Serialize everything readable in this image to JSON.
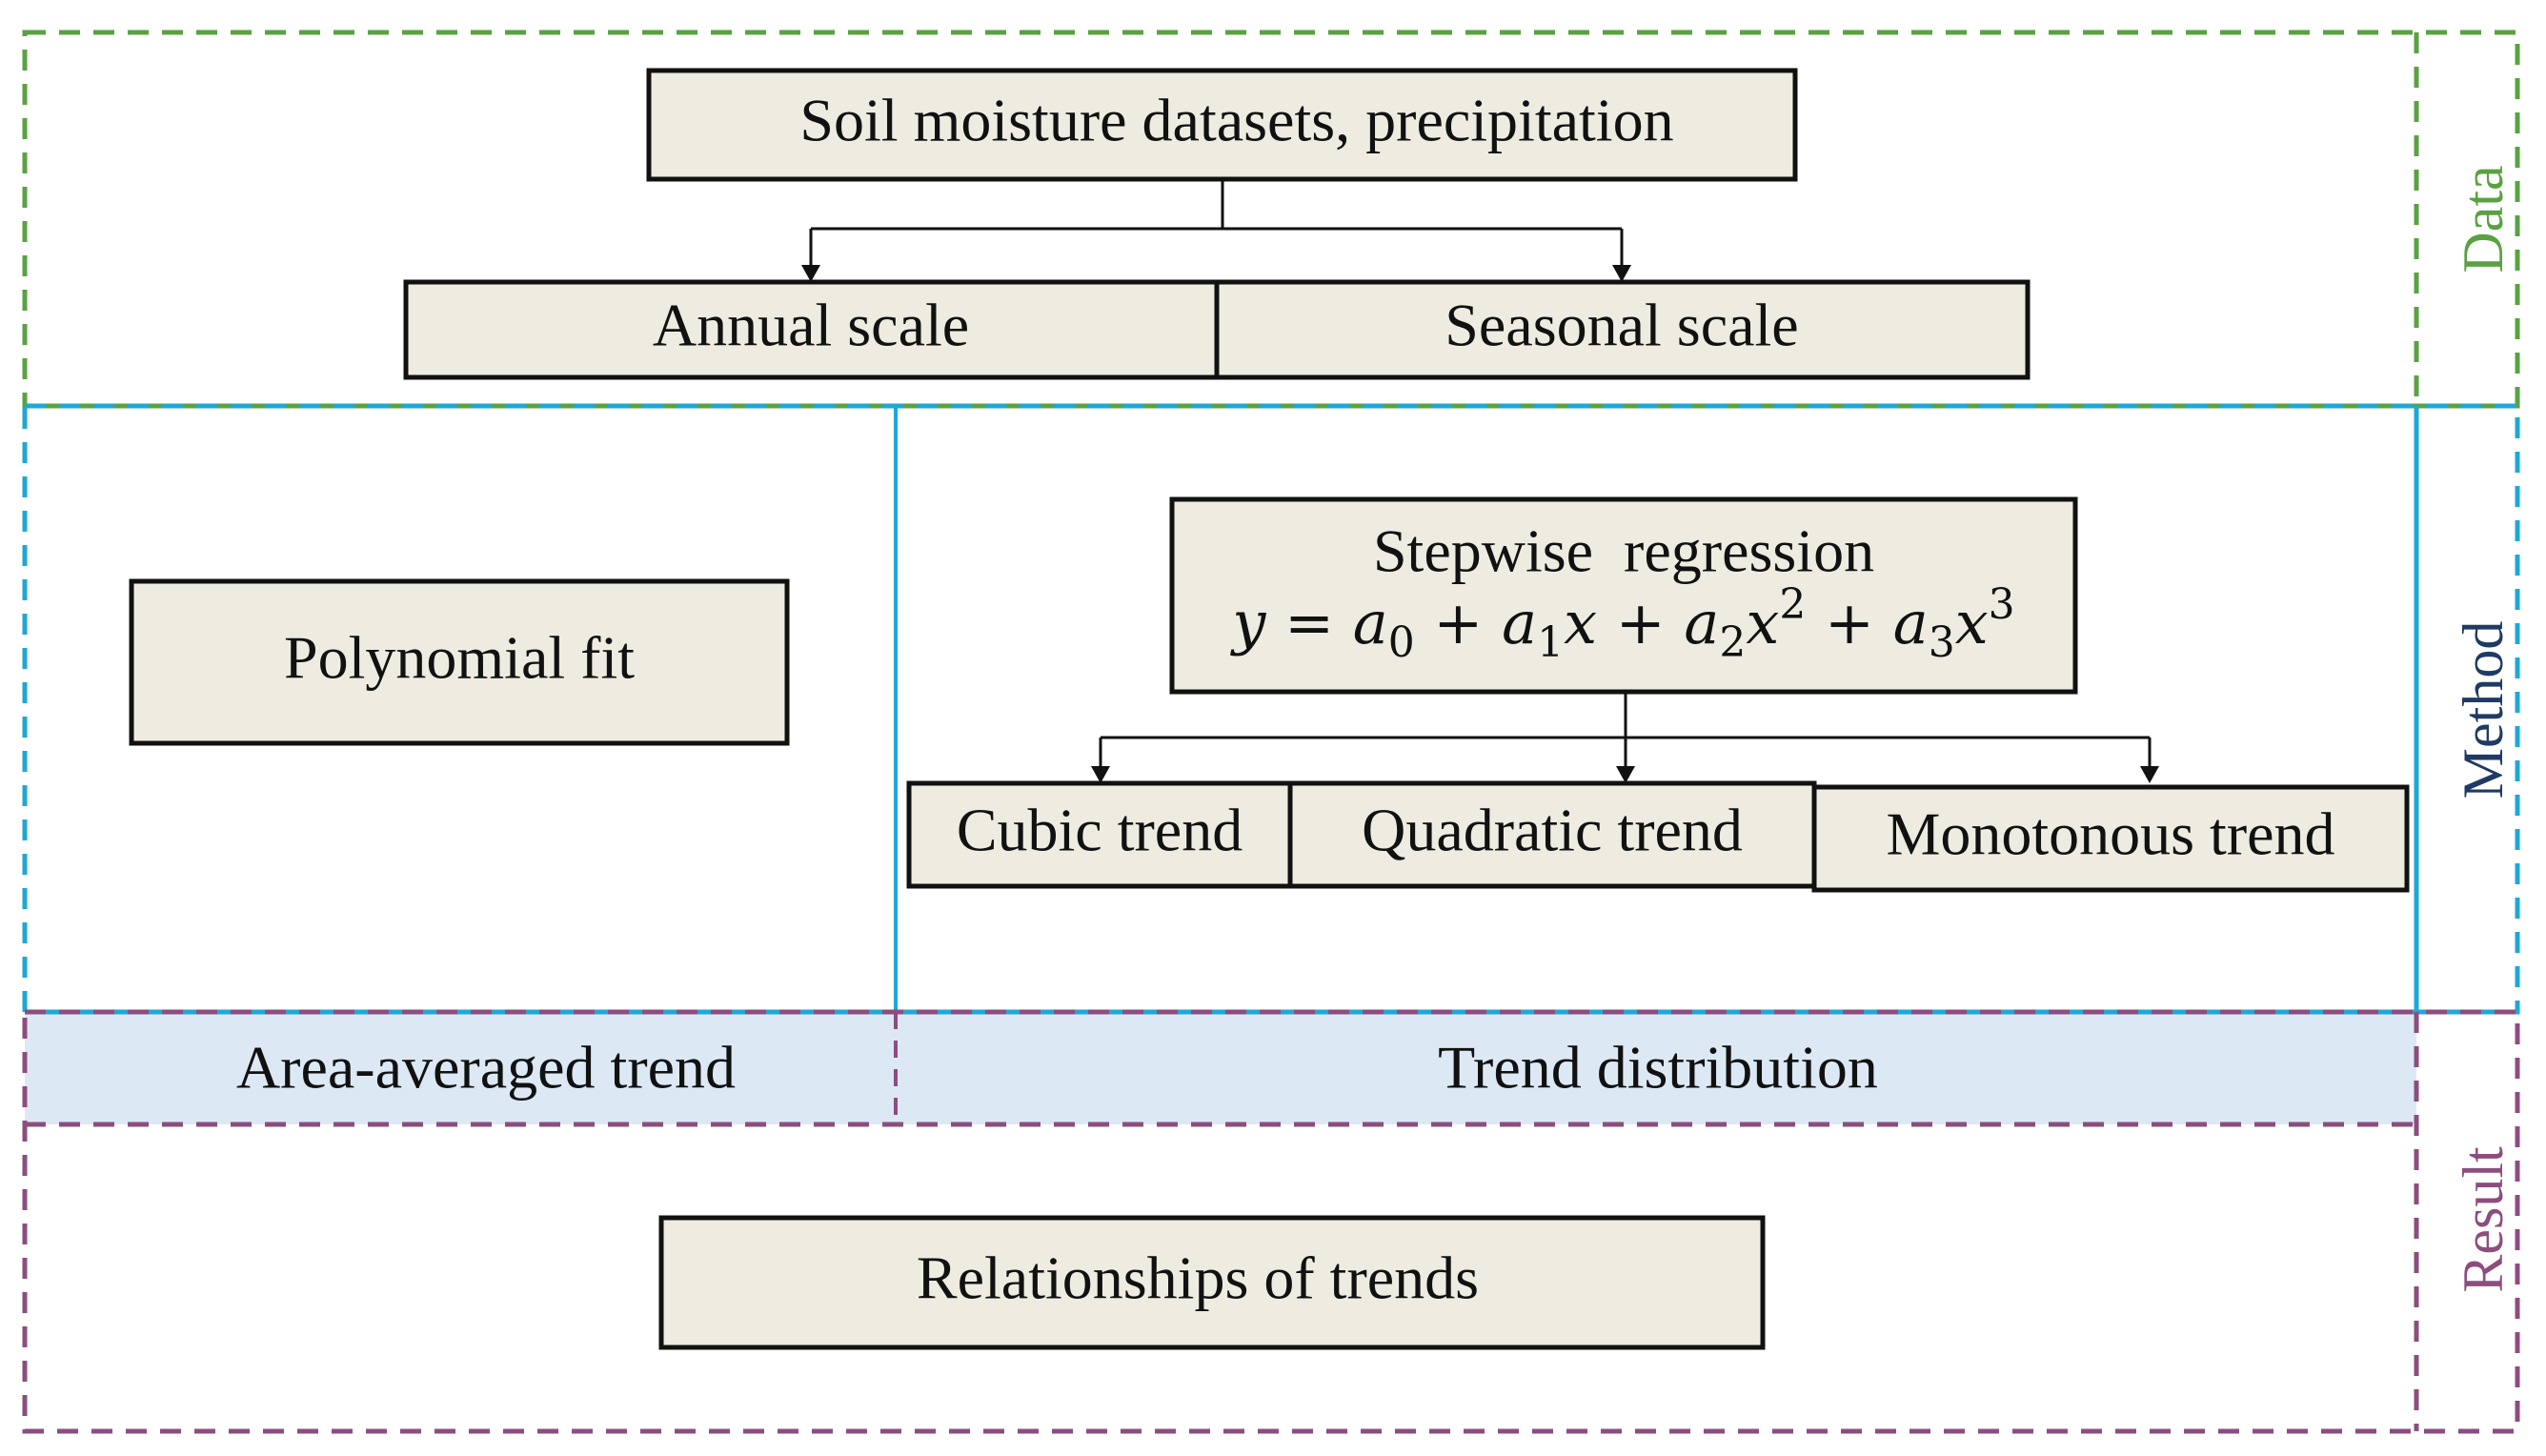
{
  "sections": {
    "data": {
      "label": "Data",
      "color": "#5aa142"
    },
    "method": {
      "label": "Method",
      "color": "#1ea8d6",
      "label_color": "#1f3b63"
    },
    "result": {
      "label": "Result",
      "color": "#8c4d7f"
    }
  },
  "boxes": {
    "source": "Soil moisture datasets, precipitation",
    "annual": "Annual scale",
    "seasonal": "Seasonal scale",
    "polynomial": "Polynomial fit",
    "stepwise_title": "Stepwise  regression",
    "stepwise_formula": "y = a0 + a1x + a2x2 + a3x3",
    "cubic": "Cubic trend",
    "quadratic": "Quadratic trend",
    "monotonous": "Monotonous trend",
    "relationships": "Relationships of trends"
  },
  "results": {
    "area_averaged": "Area-averaged trend",
    "distribution": "Trend distribution",
    "band_color": "#dce9f5"
  },
  "colors": {
    "box_fill": "#eeece1",
    "box_stroke": "#111111"
  }
}
